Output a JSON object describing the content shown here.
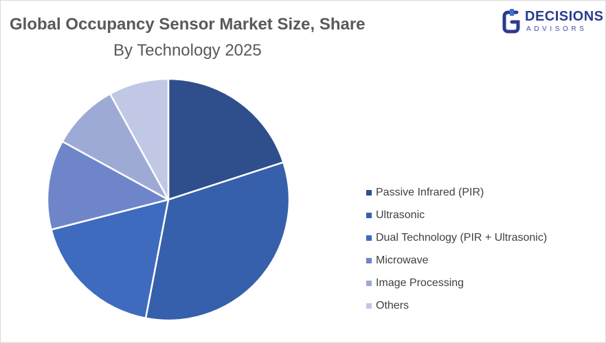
{
  "chart_data": {
    "type": "pie",
    "title": "Global Occupancy Sensor Market Size, Share",
    "subtitle": "By Technology  2025",
    "legend_position": "right",
    "slices": [
      {
        "label": "Passive Infrared (PIR)",
        "value": 20,
        "color": "#2e4f8c"
      },
      {
        "label": "Ultrasonic",
        "value": 33,
        "color": "#3660ab"
      },
      {
        "label": "Dual Technology (PIR + Ultrasonic)",
        "value": 18,
        "color": "#3f6bbf"
      },
      {
        "label": "Microwave",
        "value": 12,
        "color": "#6e86c9"
      },
      {
        "label": "Image Processing",
        "value": 9,
        "color": "#9eaad6"
      },
      {
        "label": "Others",
        "value": 8,
        "color": "#c0c8e5"
      }
    ]
  },
  "logo": {
    "word": "DECISIONS",
    "sub": "ADVISORS",
    "color": "#2a3b8f"
  }
}
